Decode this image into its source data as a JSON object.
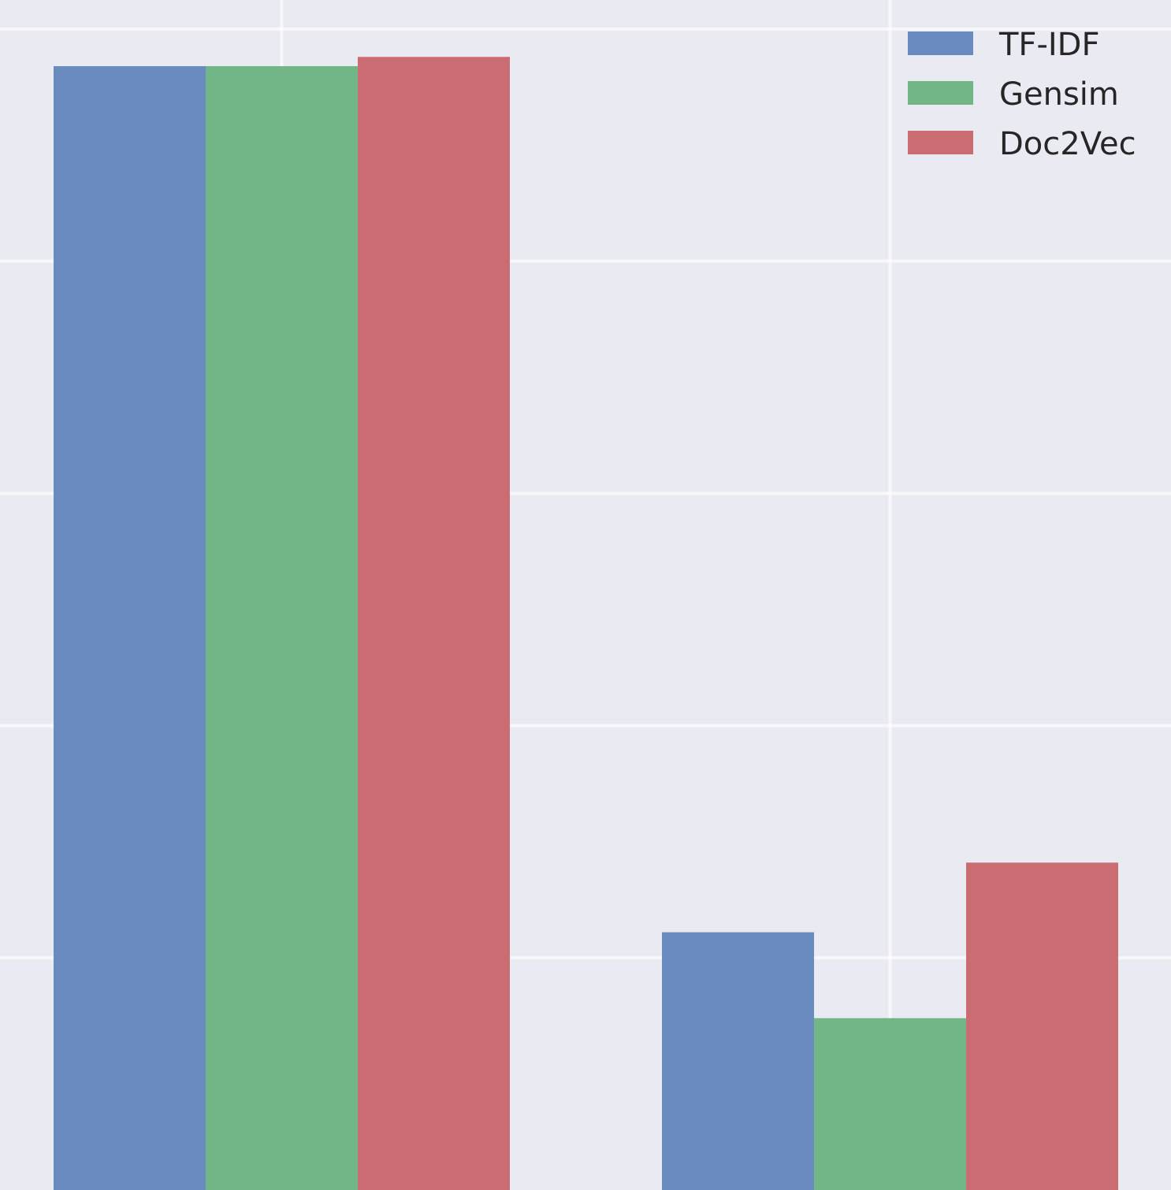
{
  "chart_data": {
    "type": "bar",
    "categories": [
      "",
      ""
    ],
    "series": [
      {
        "name": "TF-IDF",
        "color": "#6a8bbf",
        "values": [
          0.968,
          0.222
        ]
      },
      {
        "name": "Gensim",
        "color": "#72b586",
        "values": [
          0.968,
          0.148
        ]
      },
      {
        "name": "Doc2Vec",
        "color": "#cb6c72",
        "values": [
          0.976,
          0.282
        ]
      }
    ],
    "ylim": [
      0,
      1.025
    ],
    "grid": true,
    "legend_position": "top-right",
    "background": "#eaeaf2",
    "title": "",
    "xlabel": "",
    "ylabel": ""
  }
}
